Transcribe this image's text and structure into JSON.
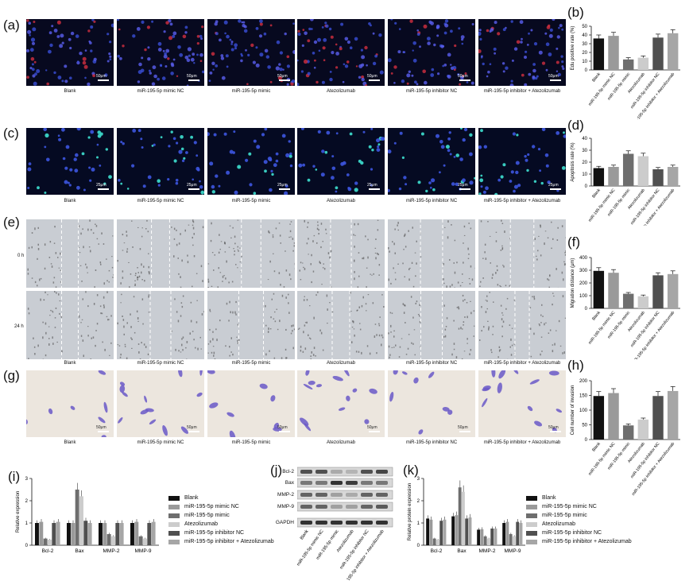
{
  "panel_labels": {
    "a": "(a)",
    "b": "(b)",
    "c": "(c)",
    "d": "(d)",
    "e": "(e)",
    "f": "(f)",
    "g": "(g)",
    "h": "(h)",
    "i": "(i)",
    "j": "(j)",
    "k": "(k)"
  },
  "groups": [
    "Blank",
    "miR-195-5p mimic NC",
    "miR-195-5p mimic",
    "Atezolizumab",
    "miR-195-5p inhibitor NC",
    "miR-195-5p inhibitor + Atezolizumab"
  ],
  "scale_bars": {
    "a": "50μm",
    "c": "25μm",
    "g": "50μm"
  },
  "wound_rows": [
    "0 h",
    "24 h"
  ],
  "colors": {
    "g1": "#111111",
    "g2": "#9a9a9a",
    "g3": "#6e6e6e",
    "g4": "#cccccc",
    "g5": "#505050",
    "g6": "#a6a6a6"
  },
  "blot": {
    "bands": [
      "Bcl-2",
      "Bax",
      "MMP-2",
      "MMP-9",
      "GAPDH"
    ],
    "lanes": [
      "Blank",
      "miR-195-5p mimic NC",
      "miR-195-5p mimic",
      "Atezolizumab",
      "miR-195-5p inhibitor NC",
      "miR-195-5p inhibitor + Atezolizumab"
    ]
  },
  "chart_data": [
    {
      "id": "b",
      "type": "bar",
      "categories": [
        "Blank",
        "miR-195-5p mimic NC",
        "miR-195-5p mimic",
        "Atezolizumab",
        "miR-195-5p inhibitor NC",
        "miR-195-5p inhibitor + Atezolizumab"
      ],
      "values": [
        36,
        39,
        12,
        14,
        37,
        42
      ],
      "errors": [
        4,
        4,
        2,
        2,
        4,
        4
      ],
      "ylabel": "Edu positive rate (%)",
      "ylim": [
        0,
        50
      ],
      "yticks": [
        0,
        10,
        20,
        30,
        40,
        50
      ]
    },
    {
      "id": "d",
      "type": "bar",
      "categories": [
        "Blank",
        "miR-195-5p mimic NC",
        "miR-195-5p mimic",
        "Atezolizumab",
        "miR-195-5p inhibitor NC",
        "miR-195-5p inhibitor + Atezolizumab"
      ],
      "values": [
        15,
        16,
        27,
        25,
        14,
        16
      ],
      "errors": [
        1.5,
        1.5,
        2.5,
        2.5,
        1.5,
        1.5
      ],
      "ylabel": "Apoptosis rate (%)",
      "ylim": [
        0,
        40
      ],
      "yticks": [
        0,
        10,
        20,
        30,
        40
      ]
    },
    {
      "id": "f",
      "type": "bar",
      "categories": [
        "Blank",
        "miR-195-5p mimic NC",
        "miR-195-5p mimic",
        "Atezolizumab",
        "miR-195-5p inhibitor NC",
        "miR-195-5p inhibitor + Atezolizumab"
      ],
      "values": [
        295,
        280,
        115,
        95,
        260,
        270
      ],
      "errors": [
        25,
        25,
        10,
        10,
        20,
        25
      ],
      "ylabel": "Migration distance (μm)",
      "ylim": [
        0,
        400
      ],
      "yticks": [
        0,
        100,
        200,
        300,
        400
      ]
    },
    {
      "id": "h",
      "type": "bar",
      "categories": [
        "Blank",
        "miR-195-5p mimic NC",
        "miR-195-5p mimic",
        "Atezolizumab",
        "miR-195-5p inhibitor NC",
        "miR-195-5p inhibitor + Atezolizumab"
      ],
      "values": [
        148,
        158,
        48,
        68,
        148,
        165
      ],
      "errors": [
        15,
        15,
        5,
        5,
        15,
        15
      ],
      "ylabel": "Cell number of invasion",
      "ylim": [
        0,
        200
      ],
      "yticks": [
        0,
        50,
        100,
        150,
        200
      ]
    },
    {
      "id": "i",
      "type": "bar",
      "categories": [
        "Bcl-2",
        "Bax",
        "MMP-2",
        "MMP-9"
      ],
      "series": [
        {
          "name": "Blank",
          "values": [
            1.0,
            1.0,
            1.0,
            1.0
          ]
        },
        {
          "name": "miR-195-5p mimic NC",
          "values": [
            1.05,
            1.0,
            1.0,
            1.05
          ]
        },
        {
          "name": "miR-195-5p mimic",
          "values": [
            0.3,
            2.5,
            0.5,
            0.4
          ]
        },
        {
          "name": "Atezolizumab",
          "values": [
            0.25,
            2.2,
            0.4,
            0.3
          ]
        },
        {
          "name": "miR-195-5p inhibitor NC",
          "values": [
            1.0,
            1.1,
            1.0,
            1.0
          ]
        },
        {
          "name": "miR-195-5p inhibitor + Atezolizumab",
          "values": [
            1.05,
            1.0,
            1.0,
            1.05
          ]
        }
      ],
      "ylabel": "Relative expression",
      "ylim": [
        0,
        3
      ],
      "yticks": [
        0,
        1,
        2,
        3
      ]
    },
    {
      "id": "k",
      "type": "bar",
      "categories": [
        "Bcl-2",
        "Bax",
        "MMP-2",
        "MMP-9"
      ],
      "series": [
        {
          "name": "Blank",
          "values": [
            1.2,
            1.3,
            0.7,
            1.0
          ]
        },
        {
          "name": "miR-195-5p mimic NC",
          "values": [
            1.15,
            1.35,
            0.72,
            1.05
          ]
        },
        {
          "name": "miR-195-5p mimic",
          "values": [
            0.3,
            2.6,
            0.4,
            0.5
          ]
        },
        {
          "name": "Atezolizumab",
          "values": [
            0.25,
            2.4,
            0.3,
            0.4
          ]
        },
        {
          "name": "miR-195-5p inhibitor NC",
          "values": [
            1.1,
            1.2,
            0.75,
            1.05
          ]
        },
        {
          "name": "miR-195-5p inhibitor + Atezolizumab",
          "values": [
            1.15,
            1.25,
            0.75,
            1.0
          ]
        }
      ],
      "ylabel": "Relative protein expression",
      "ylim": [
        0,
        3
      ],
      "yticks": [
        0,
        1,
        2,
        3
      ]
    }
  ]
}
